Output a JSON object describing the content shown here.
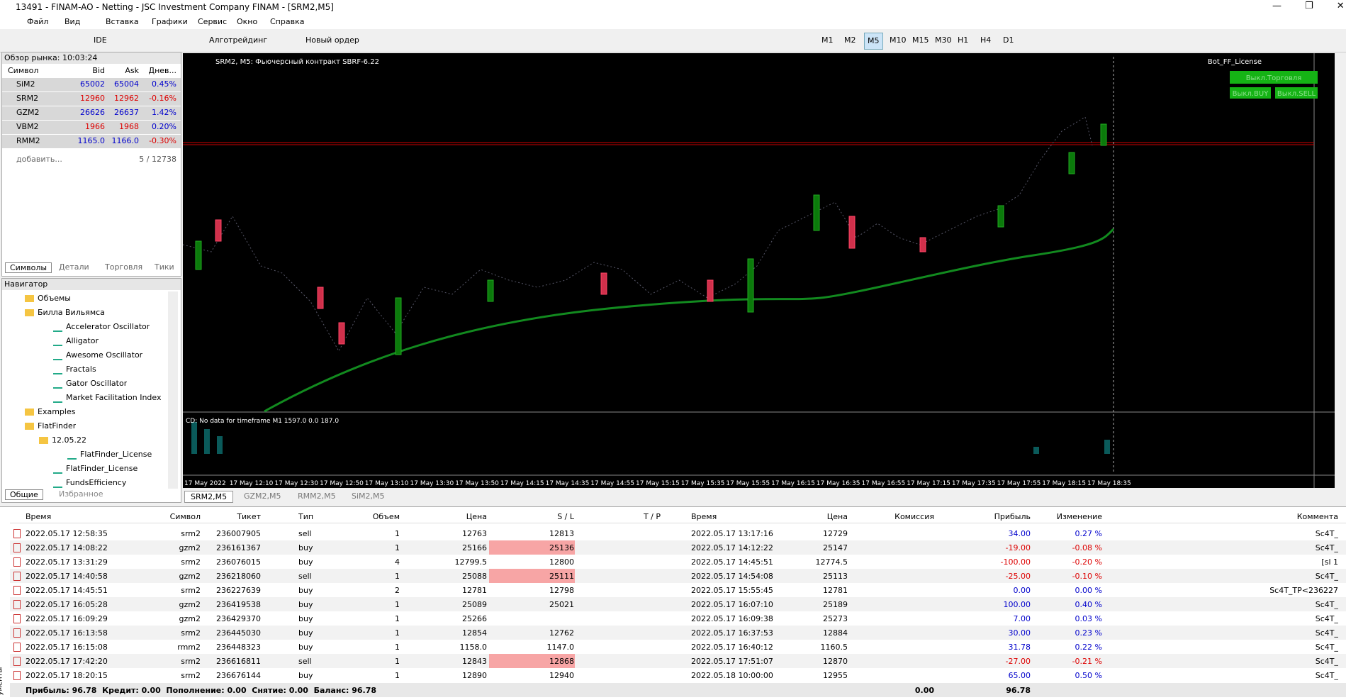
{
  "window": {
    "title": "13491 - FINAM-AO - Netting - JSC Investment Company FINAM - [SRM2,M5]"
  },
  "menu": [
    "Файл",
    "Вид",
    "Вставка",
    "Графики",
    "Сервис",
    "Окно",
    "Справка"
  ],
  "toolbar": {
    "ide": "IDE",
    "algo": "Алготрейдинг",
    "new_order": "Новый ордер",
    "timeframes": [
      "M1",
      "M2",
      "M5",
      "M10",
      "M15",
      "M30",
      "H1",
      "H4",
      "D1"
    ],
    "active_timeframe": "M5"
  },
  "market_watch": {
    "title": "Обзор рынка: 10:03:24",
    "columns": [
      "Символ",
      "Bid",
      "Ask",
      "Днев..."
    ],
    "rows": [
      [
        "SiM2",
        "65002",
        "65004",
        "0.45%"
      ],
      [
        "SRM2",
        "12960",
        "12962",
        "-0.16%"
      ],
      [
        "GZM2",
        "26626",
        "26637",
        "1.42%"
      ],
      [
        "VBM2",
        "1966",
        "1968",
        "0.20%"
      ],
      [
        "RMM2",
        "1165.0",
        "1166.0",
        "-0.30%"
      ]
    ],
    "add": "добавить...",
    "count": "5 / 12738",
    "tabs": [
      "Символы",
      "Детали",
      "Торговля",
      "Тики"
    ]
  },
  "navigator": {
    "title": "Навигатор",
    "items": [
      "Объемы",
      "Билла Вильямса",
      "Accelerator Oscillator",
      "Alligator",
      "Awesome Oscillator",
      "Fractals",
      "Gator Oscillator",
      "Market Facilitation Index",
      "Examples",
      "FlatFinder",
      "12.05.22",
      "FlatFinder_License",
      "FlatFinder_License",
      "FundsEfficiency"
    ],
    "tabs": [
      "Общие",
      "Избранное"
    ]
  },
  "chart": {
    "header": "SRM2, M5: Фьючерсный контракт SBRF-6.22",
    "ea": "Bot_FF_License",
    "buttons": [
      "Выкл.Торговля",
      "Выкл.BUY",
      "Выкл.SELL"
    ],
    "indicator": "CD: No data for timeframe M1 1597.0 0.0 187.0",
    "time_labels": [
      "17 May 2022",
      "17 May 12:10",
      "17 May 12:30",
      "17 May 12:50",
      "17 May 13:10",
      "17 May 13:30",
      "17 May 13:50",
      "17 May 14:15",
      "17 May 14:35",
      "17 May 14:55",
      "17 May 15:15",
      "17 May 15:35",
      "17 May 15:55",
      "17 May 16:15",
      "17 May 16:35",
      "17 May 16:55",
      "17 May 17:15",
      "17 May 17:35",
      "17 May 17:55",
      "17 May 18:15",
      "17 May 18:35"
    ],
    "tabs": [
      "SRM2,M5",
      "GZM2,M5",
      "RMM2,M5",
      "SiM2,M5"
    ]
  },
  "trades": {
    "columns": [
      "Время",
      "Символ",
      "Тикет",
      "Тип",
      "Объем",
      "Цена",
      "S / L",
      "T / P",
      "Время",
      "Цена",
      "Комиссия",
      "Прибыль",
      "Изменение",
      "Коммента"
    ],
    "rows": [
      [
        "2022.05.17 12:58:35",
        "srm2",
        "236007905",
        "sell",
        "1",
        "12763",
        "12813",
        "",
        "2022.05.17 13:17:16",
        "12729",
        "",
        "34.00",
        "0.27 %",
        "Sc4T_"
      ],
      [
        "2022.05.17 14:08:22",
        "gzm2",
        "236161367",
        "buy",
        "1",
        "25166",
        "25136",
        "",
        "2022.05.17 14:12:22",
        "25147",
        "",
        "-19.00",
        "-0.08 %",
        "Sc4T_"
      ],
      [
        "2022.05.17 13:31:29",
        "srm2",
        "236076015",
        "buy",
        "4",
        "12799.5",
        "12800",
        "",
        "2022.05.17 14:45:51",
        "12774.5",
        "",
        "-100.00",
        "-0.20 %",
        "[sl 1"
      ],
      [
        "2022.05.17 14:40:58",
        "gzm2",
        "236218060",
        "sell",
        "1",
        "25088",
        "25111",
        "",
        "2022.05.17 14:54:08",
        "25113",
        "",
        "-25.00",
        "-0.10 %",
        "Sc4T_"
      ],
      [
        "2022.05.17 14:45:51",
        "srm2",
        "236227639",
        "buy",
        "2",
        "12781",
        "12798",
        "",
        "2022.05.17 15:55:45",
        "12781",
        "",
        "0.00",
        "0.00 %",
        "Sc4T_TP<236227"
      ],
      [
        "2022.05.17 16:05:28",
        "gzm2",
        "236419538",
        "buy",
        "1",
        "25089",
        "25021",
        "",
        "2022.05.17 16:07:10",
        "25189",
        "",
        "100.00",
        "0.40 %",
        "Sc4T_"
      ],
      [
        "2022.05.17 16:09:29",
        "gzm2",
        "236429370",
        "buy",
        "1",
        "25266",
        "",
        "",
        "2022.05.17 16:09:38",
        "25273",
        "",
        "7.00",
        "0.03 %",
        "Sc4T_"
      ],
      [
        "2022.05.17 16:13:58",
        "srm2",
        "236445030",
        "buy",
        "1",
        "12854",
        "12762",
        "",
        "2022.05.17 16:37:53",
        "12884",
        "",
        "30.00",
        "0.23 %",
        "Sc4T_"
      ],
      [
        "2022.05.17 16:15:08",
        "rmm2",
        "236448323",
        "buy",
        "1",
        "1158.0",
        "1147.0",
        "",
        "2022.05.17 16:40:12",
        "1160.5",
        "",
        "31.78",
        "0.22 %",
        "Sc4T_"
      ],
      [
        "2022.05.17 17:42:20",
        "srm2",
        "236616811",
        "sell",
        "1",
        "12843",
        "12868",
        "",
        "2022.05.17 17:51:07",
        "12870",
        "",
        "-27.00",
        "-0.21 %",
        "Sc4T_"
      ],
      [
        "2022.05.17 18:20:15",
        "srm2",
        "236676144",
        "buy",
        "1",
        "12890",
        "12940",
        "",
        "2022.05.18 10:00:00",
        "12955",
        "",
        "65.00",
        "0.50 %",
        "Sc4T_"
      ]
    ],
    "sl_hit_rows": [
      1,
      3,
      9
    ],
    "summary": "Прибыль: 96.78  Кредит: 0.00  Пополнение: 0.00  Снятие: 0.00  Баланс: 96.78",
    "commission_total": "0.00",
    "profit_total": "96.78",
    "side_label": "ументы"
  }
}
